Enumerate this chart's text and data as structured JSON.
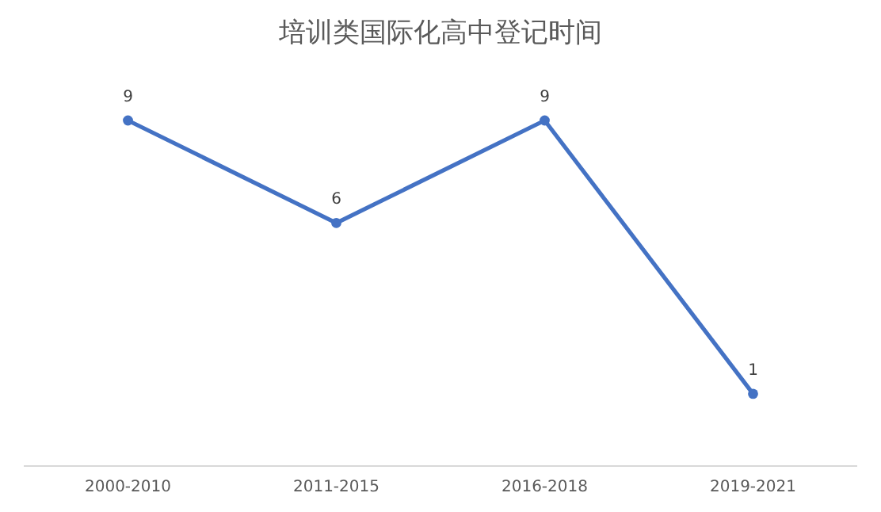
{
  "chart_data": {
    "type": "line",
    "title": "培训类国际化高中登记时间",
    "categories": [
      "2000-2010",
      "2011-2015",
      "2016-2018",
      "2019-2021"
    ],
    "series": [
      {
        "color": "#4472c4",
        "values": [
          9,
          6,
          9,
          1
        ]
      }
    ],
    "data_labels": true,
    "marker": "circle"
  }
}
